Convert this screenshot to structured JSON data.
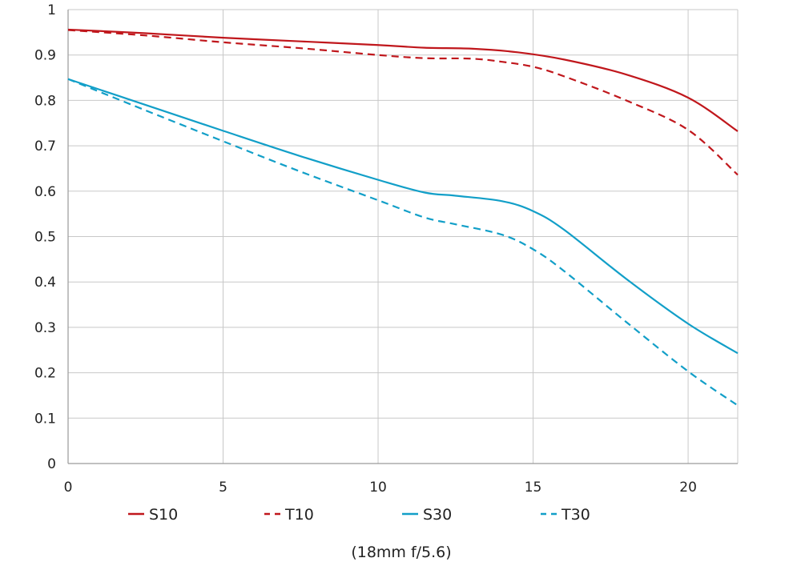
{
  "chart_data": {
    "type": "line",
    "caption": "(18mm f/5.6)",
    "xlim": [
      0,
      21.6
    ],
    "ylim": [
      0,
      1
    ],
    "x_ticks": [
      "0",
      "5",
      "10",
      "15",
      "20"
    ],
    "y_ticks": [
      "0",
      "0.1",
      "0.2",
      "0.3",
      "0.4",
      "0.5",
      "0.6",
      "0.7",
      "0.8",
      "0.9",
      "1"
    ],
    "grid": true,
    "legend_position": "bottom",
    "series": [
      {
        "name": "S10",
        "color": "#c0171c",
        "dash": "solid",
        "points": [
          [
            0,
            0.956
          ],
          [
            2.5,
            0.948
          ],
          [
            5,
            0.938
          ],
          [
            7.5,
            0.93
          ],
          [
            10,
            0.922
          ],
          [
            11.5,
            0.916
          ],
          [
            13,
            0.914
          ],
          [
            14.5,
            0.906
          ],
          [
            16,
            0.89
          ],
          [
            18,
            0.857
          ],
          [
            20,
            0.806
          ],
          [
            21.6,
            0.732
          ]
        ]
      },
      {
        "name": "T10",
        "color": "#c0171c",
        "dash": "dashed",
        "points": [
          [
            0,
            0.955
          ],
          [
            2.5,
            0.943
          ],
          [
            5,
            0.928
          ],
          [
            7.5,
            0.915
          ],
          [
            10,
            0.9
          ],
          [
            11.5,
            0.893
          ],
          [
            13,
            0.892
          ],
          [
            14,
            0.885
          ],
          [
            15,
            0.874
          ],
          [
            16,
            0.853
          ],
          [
            18,
            0.8
          ],
          [
            20,
            0.735
          ],
          [
            21.6,
            0.636
          ]
        ]
      },
      {
        "name": "S30",
        "color": "#129fc8",
        "dash": "solid",
        "points": [
          [
            0,
            0.847
          ],
          [
            2.5,
            0.79
          ],
          [
            5,
            0.733
          ],
          [
            7.5,
            0.677
          ],
          [
            10,
            0.625
          ],
          [
            11.5,
            0.597
          ],
          [
            12.5,
            0.59
          ],
          [
            14,
            0.578
          ],
          [
            15,
            0.556
          ],
          [
            16,
            0.515
          ],
          [
            18,
            0.407
          ],
          [
            20,
            0.308
          ],
          [
            21.6,
            0.243
          ]
        ]
      },
      {
        "name": "T30",
        "color": "#129fc8",
        "dash": "dashed",
        "points": [
          [
            0,
            0.847
          ],
          [
            2.5,
            0.778
          ],
          [
            5,
            0.71
          ],
          [
            7.5,
            0.643
          ],
          [
            10,
            0.58
          ],
          [
            11.5,
            0.542
          ],
          [
            12.5,
            0.527
          ],
          [
            14,
            0.504
          ],
          [
            15,
            0.472
          ],
          [
            16,
            0.424
          ],
          [
            18,
            0.312
          ],
          [
            20,
            0.203
          ],
          [
            21.6,
            0.128
          ]
        ]
      }
    ]
  }
}
